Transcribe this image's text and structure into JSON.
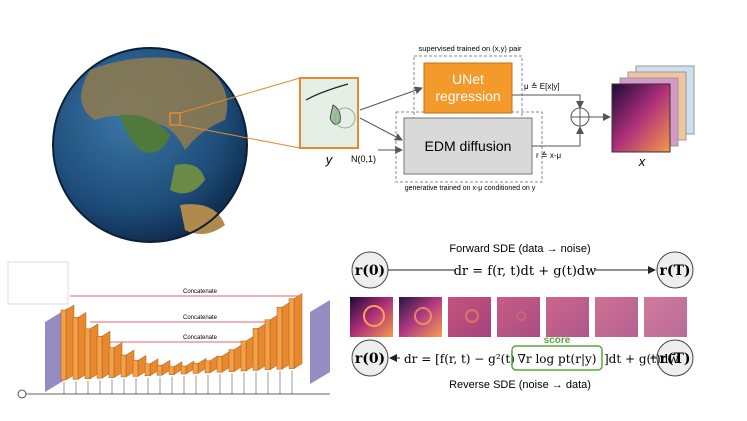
{
  "pipeline": {
    "input_label": "y",
    "output_label": "x",
    "noise_label": "N(0,1)",
    "supervised_note": "supervised trained on (x,y) pair",
    "unet_box": [
      "UNet",
      "regression"
    ],
    "mean_label": "μ ≙ E[x|y]",
    "edm_box": "EDM diffusion",
    "residual_label": "r ≙ x-μ",
    "generative_note": "generative trained on x-μ conditioned on y"
  },
  "unet_arch": {
    "skip_labels": [
      "Concatenate",
      "Concatenate",
      "Concatenate"
    ]
  },
  "sde": {
    "forward_title": "Forward SDE (data → noise)",
    "start_state": "r(0)",
    "end_state": "r(T)",
    "forward_equation": "dr = f(r, t)dt + g(t)dw",
    "score_label": "score",
    "reverse_equation_parts": [
      "dr = [f(r, t) − g²(t)",
      "∇r log pt(r|y)",
      "]dt + g(t)dw̄"
    ],
    "reverse_title": "Reverse SDE (noise → data)"
  }
}
